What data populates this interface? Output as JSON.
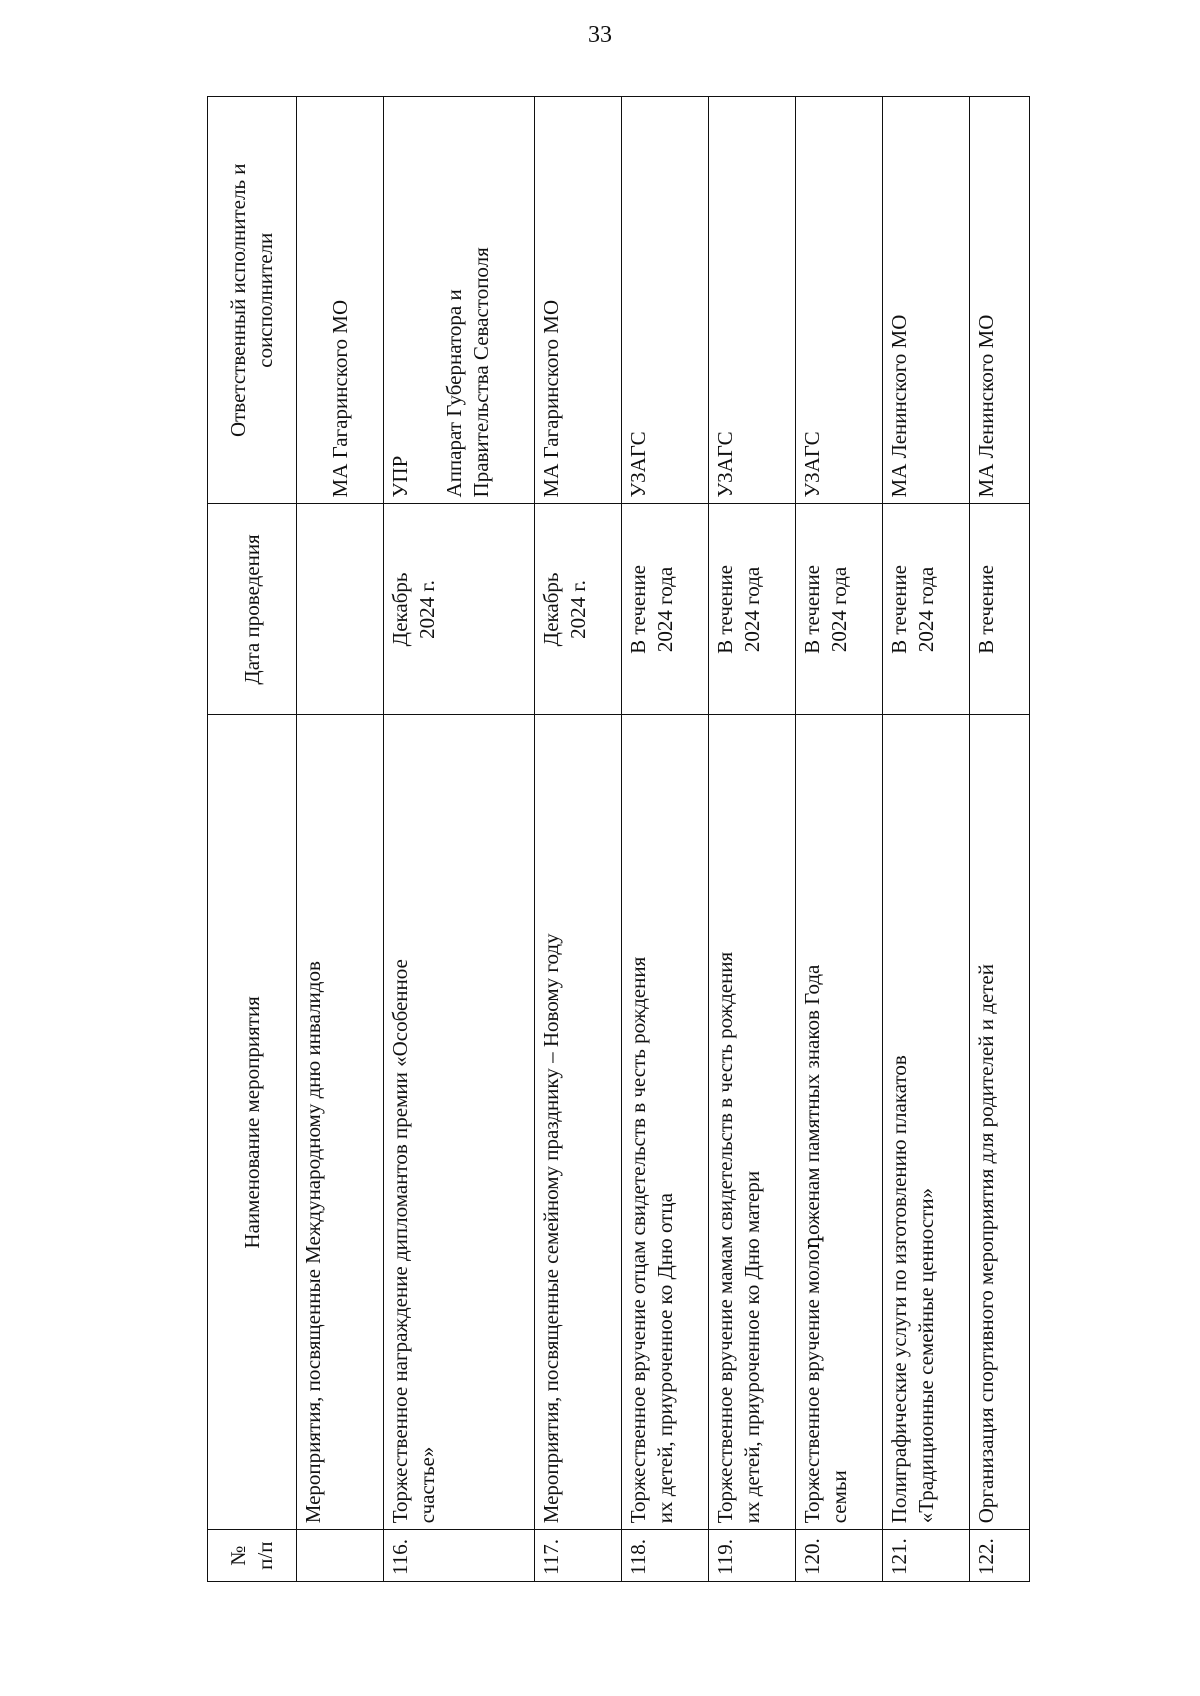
{
  "page_number": "33",
  "table": {
    "headers": {
      "num": "№\nп/п",
      "name": "Наименование мероприятия",
      "date": "Дата проведения",
      "responsible": "Ответственный исполнитель и\nсоисполнители"
    },
    "rows": [
      {
        "num": "",
        "name": "Мероприятия, посвященные Международному дню инвалидов",
        "date": "",
        "responsible": "\nМА Гагаринского МО"
      },
      {
        "num": "116.",
        "name": "Торжественное награждение дипломантов премии «Особенное\nсчастье»",
        "date": "Декабрь\n2024 г.",
        "responsible": "УПР\n\nАппарат Губернатора и\nПравительства Севастополя"
      },
      {
        "num": "117.",
        "name": "Мероприятия, посвященные семейному празднику – Новому году",
        "date": "Декабрь\n2024 г.",
        "responsible": "МА Гагаринского МО"
      },
      {
        "num": "118.",
        "name": "Торжественное вручение отцам свидетельств в честь рождения\nих детей, приуроченное ко Дню отца",
        "date": "В течение\n2024 года",
        "responsible": "УЗАГС"
      },
      {
        "num": "119.",
        "name": "Торжественное вручение мамам свидетельств в честь рождения\nих детей, приуроченное ко Дню матери",
        "date": "В течение\n2024 года",
        "responsible": "УЗАГС"
      },
      {
        "num": "120.",
        "name": "Торжественное вручение молоդоженам памятных знаков Года\nсемьи",
        "date": "В течение\n2024 года",
        "responsible": "УЗАГС"
      },
      {
        "num": "121.",
        "name": "Полиграфические услуги по изготовлению плакатов\n«Традиционные семейные ценности»",
        "date": "В течение\n2024 года",
        "responsible": "МА Ленинского МО"
      },
      {
        "num": "122.",
        "name": "Организация спортивного мероприятия для родителей и детей",
        "date": "В течение",
        "responsible": "МА Ленинского МО"
      }
    ]
  }
}
